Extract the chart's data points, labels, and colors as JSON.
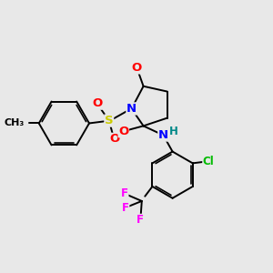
{
  "background_color": "#e8e8e8",
  "bond_color": "#000000",
  "bond_width": 1.4,
  "atom_colors": {
    "O": "#ff0000",
    "N": "#0000ff",
    "S": "#cccc00",
    "Cl": "#00bb00",
    "F": "#ff00ff",
    "H": "#008888",
    "C": "#000000"
  },
  "font_size": 8.5
}
